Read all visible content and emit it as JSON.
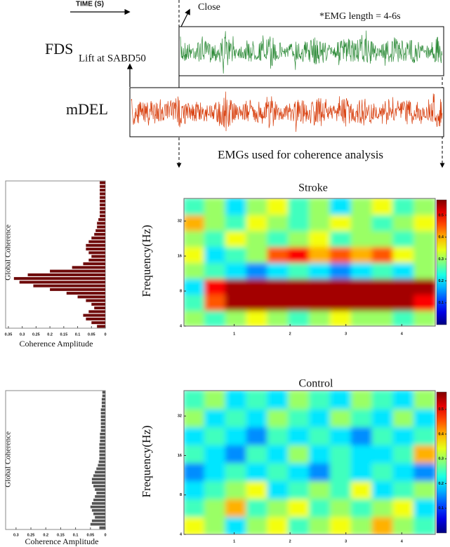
{
  "figure": {
    "time_label": "TIME (S)",
    "close_label": "Close",
    "emg_length_note": "*EMG length = 4-6s",
    "fds_label": "FDS",
    "lift_label": "Lift at SABD50",
    "mdel_label": "mDEL",
    "coherence_caption": "EMGs used for coherence analysis"
  },
  "chart_data": [
    {
      "type": "barh",
      "ylabel": "Global Coherence",
      "xlabel": "Coherence Amplitude",
      "color": "#6e0a0a",
      "xlim": [
        0.36,
        0
      ],
      "xticks": [
        0.35,
        0.3,
        0.25,
        0.2,
        0.15,
        0.1,
        0.05,
        0
      ],
      "values": [
        0.02,
        0.02,
        0.02,
        0.02,
        0.02,
        0.02,
        0.02,
        0.02,
        0.02,
        0.02,
        0.025,
        0.03,
        0.03,
        0.035,
        0.04,
        0.05,
        0.06,
        0.07,
        0.07,
        0.06,
        0.05,
        0.06,
        0.08,
        0.12,
        0.2,
        0.28,
        0.33,
        0.31,
        0.26,
        0.2,
        0.14,
        0.1,
        0.07,
        0.05,
        0.04,
        0.06,
        0.08,
        0.07,
        0.05,
        0.03
      ]
    },
    {
      "type": "heatmap",
      "title": "Stroke",
      "ylabel": "Frequency(Hz)",
      "log_y": true,
      "ylim": [
        4,
        50
      ],
      "yticks": [
        4,
        8,
        16,
        32
      ],
      "xlim": [
        0.1,
        4.6
      ],
      "xticks": [
        1,
        2,
        3,
        4
      ],
      "zlim": [
        0,
        0.57
      ],
      "cticks": [
        0.1,
        0.2,
        0.3,
        0.4,
        0.5
      ],
      "z": [
        [
          0.3,
          0.25,
          0.3,
          0.35,
          0.3,
          0.25,
          0.3,
          0.35,
          0.3,
          0.3,
          0.25,
          0.3
        ],
        [
          0.25,
          0.45,
          0.55,
          0.55,
          0.55,
          0.55,
          0.55,
          0.55,
          0.55,
          0.55,
          0.55,
          0.5
        ],
        [
          0.2,
          0.5,
          0.55,
          0.55,
          0.55,
          0.55,
          0.55,
          0.55,
          0.55,
          0.55,
          0.55,
          0.55
        ],
        [
          0.3,
          0.25,
          0.2,
          0.15,
          0.2,
          0.25,
          0.2,
          0.15,
          0.2,
          0.25,
          0.2,
          0.3
        ],
        [
          0.35,
          0.2,
          0.25,
          0.3,
          0.45,
          0.5,
          0.4,
          0.45,
          0.4,
          0.45,
          0.35,
          0.3
        ],
        [
          0.3,
          0.25,
          0.35,
          0.3,
          0.25,
          0.3,
          0.35,
          0.25,
          0.3,
          0.3,
          0.25,
          0.3
        ],
        [
          0.4,
          0.3,
          0.25,
          0.35,
          0.3,
          0.25,
          0.3,
          0.35,
          0.3,
          0.25,
          0.3,
          0.35
        ],
        [
          0.25,
          0.3,
          0.2,
          0.3,
          0.35,
          0.25,
          0.3,
          0.2,
          0.3,
          0.35,
          0.25,
          0.3
        ]
      ]
    },
    {
      "type": "barh",
      "ylabel": "Global Coherence",
      "xlabel": "Coherence Amplitude",
      "color": "#555555",
      "xlim": [
        0.335,
        0
      ],
      "xticks": [
        0.3,
        0.25,
        0.2,
        0.15,
        0.1,
        0.05,
        0
      ],
      "values": [
        0.01,
        0.01,
        0.012,
        0.012,
        0.012,
        0.015,
        0.015,
        0.015,
        0.015,
        0.015,
        0.015,
        0.015,
        0.018,
        0.018,
        0.018,
        0.02,
        0.02,
        0.02,
        0.02,
        0.02,
        0.022,
        0.025,
        0.03,
        0.035,
        0.04,
        0.045,
        0.045,
        0.04,
        0.035,
        0.03,
        0.035,
        0.04,
        0.045,
        0.05,
        0.045,
        0.04,
        0.035,
        0.045,
        0.05,
        0.02
      ]
    },
    {
      "type": "heatmap",
      "title": "Control",
      "ylabel": "Frequency(Hz)",
      "log_y": true,
      "ylim": [
        4,
        50
      ],
      "yticks": [
        4,
        8,
        16,
        32
      ],
      "xlim": [
        0.1,
        4.6
      ],
      "xticks": [
        1,
        2,
        3,
        4
      ],
      "zlim": [
        0,
        0.57
      ],
      "cticks": [
        0.1,
        0.2,
        0.3,
        0.4,
        0.5
      ],
      "z": [
        [
          0.35,
          0.3,
          0.2,
          0.3,
          0.35,
          0.25,
          0.3,
          0.35,
          0.3,
          0.4,
          0.3,
          0.25
        ],
        [
          0.25,
          0.3,
          0.4,
          0.25,
          0.3,
          0.35,
          0.25,
          0.3,
          0.25,
          0.3,
          0.35,
          0.2
        ],
        [
          0.2,
          0.25,
          0.3,
          0.35,
          0.2,
          0.25,
          0.3,
          0.25,
          0.35,
          0.2,
          0.25,
          0.3
        ],
        [
          0.15,
          0.2,
          0.25,
          0.2,
          0.25,
          0.2,
          0.15,
          0.25,
          0.2,
          0.25,
          0.2,
          0.15
        ],
        [
          0.25,
          0.2,
          0.15,
          0.25,
          0.2,
          0.3,
          0.2,
          0.25,
          0.2,
          0.2,
          0.25,
          0.4
        ],
        [
          0.2,
          0.25,
          0.2,
          0.15,
          0.25,
          0.2,
          0.25,
          0.2,
          0.15,
          0.25,
          0.2,
          0.25
        ],
        [
          0.3,
          0.2,
          0.25,
          0.2,
          0.3,
          0.25,
          0.2,
          0.3,
          0.25,
          0.2,
          0.3,
          0.2
        ],
        [
          0.25,
          0.3,
          0.2,
          0.25,
          0.2,
          0.3,
          0.25,
          0.2,
          0.3,
          0.25,
          0.2,
          0.3
        ]
      ]
    }
  ]
}
